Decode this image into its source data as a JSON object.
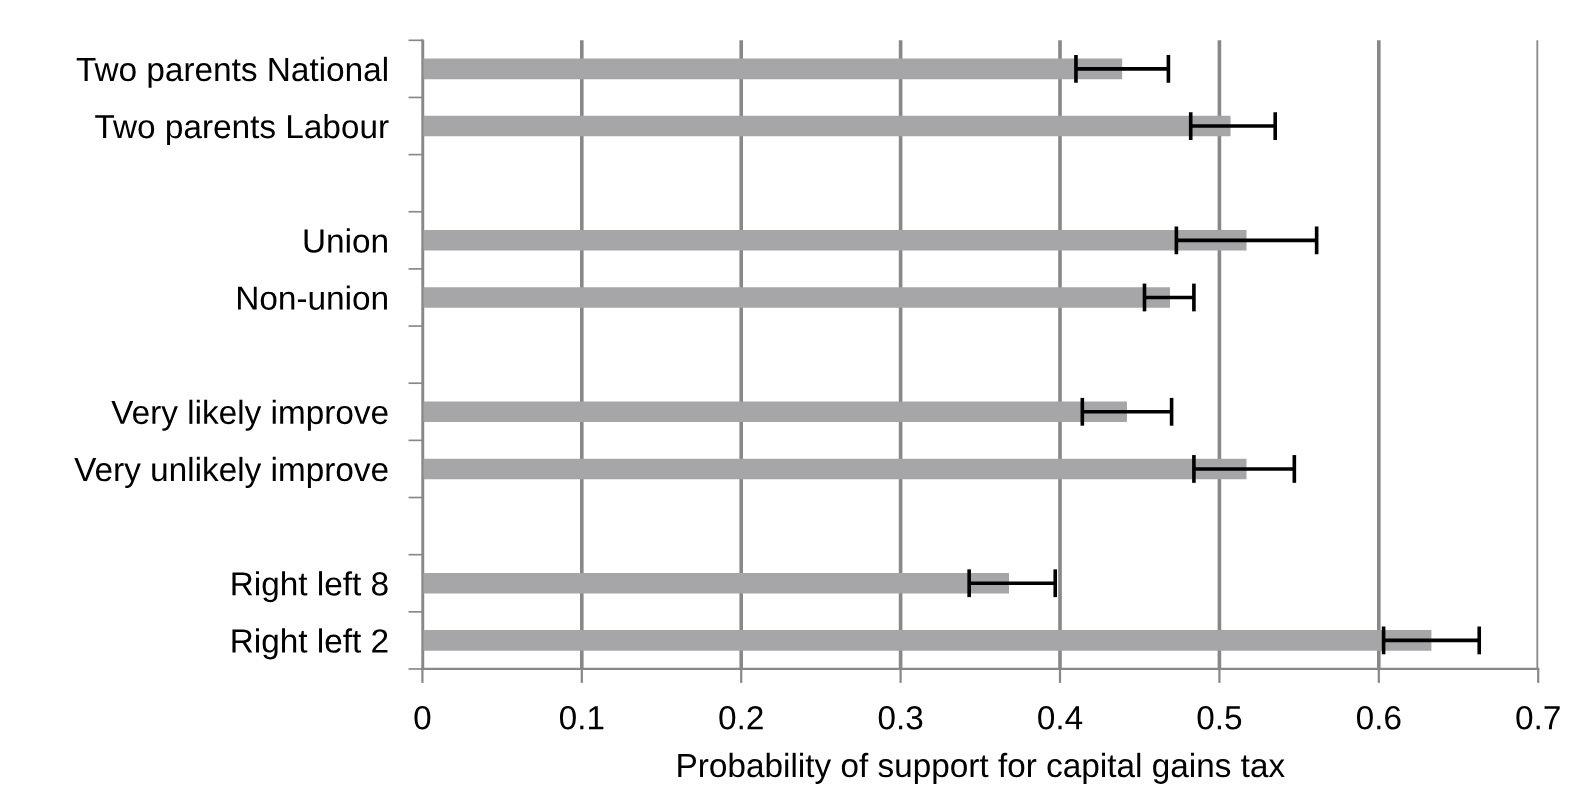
{
  "chart_data": {
    "type": "bar",
    "orientation": "horizontal",
    "xlabel": "Probability of support for capital gains tax",
    "categories": [
      "Two parents National",
      "Two parents Labour",
      null,
      "Union",
      "Non-union",
      null,
      "Very likely improve",
      "Very unlikely improve",
      null,
      "Right left 8",
      "Right left 2"
    ],
    "series": [
      {
        "color": "#a6a6a9",
        "values": [
          0.439,
          0.507,
          null,
          0.517,
          0.469,
          null,
          0.442,
          0.517,
          null,
          0.368,
          0.633
        ],
        "errors": [
          [
            0.41,
            0.468
          ],
          [
            0.482,
            0.535
          ],
          null,
          [
            0.473,
            0.561
          ],
          [
            0.453,
            0.484
          ],
          null,
          [
            0.414,
            0.47
          ],
          [
            0.484,
            0.547
          ],
          null,
          [
            0.343,
            0.397
          ],
          [
            0.603,
            0.663
          ]
        ]
      }
    ],
    "xlim": [
      0,
      0.7
    ],
    "xticks": [
      0,
      0.1,
      0.2,
      0.3,
      0.4,
      0.5,
      0.6,
      0.7
    ],
    "grid": "x"
  }
}
